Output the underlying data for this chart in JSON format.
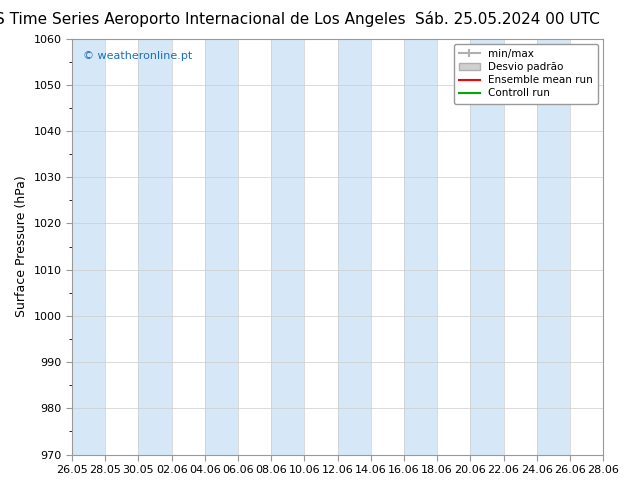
{
  "title_left": "ENS Time Series Aeroporto Internacional de Los Angeles",
  "title_right": "Sáb. 25.05.2024 00 UTC",
  "ylabel": "Surface Pressure (hPa)",
  "ylim": [
    970,
    1060
  ],
  "yticks": [
    970,
    980,
    990,
    1000,
    1010,
    1020,
    1030,
    1040,
    1050,
    1060
  ],
  "x_tick_labels": [
    "26.05",
    "28.05",
    "30.05",
    "02.06",
    "04.06",
    "06.06",
    "08.06",
    "10.06",
    "12.06",
    "14.06",
    "16.06",
    "18.06",
    "20.06",
    "22.06",
    "24.06",
    "26.06",
    "28.06"
  ],
  "watermark": "© weatheronline.pt",
  "legend_entries": [
    "min/max",
    "Desvio padrão",
    "Ensemble mean run",
    "Controll run"
  ],
  "legend_colors": [
    "#b0b0b0",
    "#d0d0d0",
    "#ff0000",
    "#00aa00"
  ],
  "band_color": "#d6e8f7",
  "background_color": "#ffffff",
  "title_fontsize": 11,
  "axis_fontsize": 9,
  "tick_fontsize": 8
}
